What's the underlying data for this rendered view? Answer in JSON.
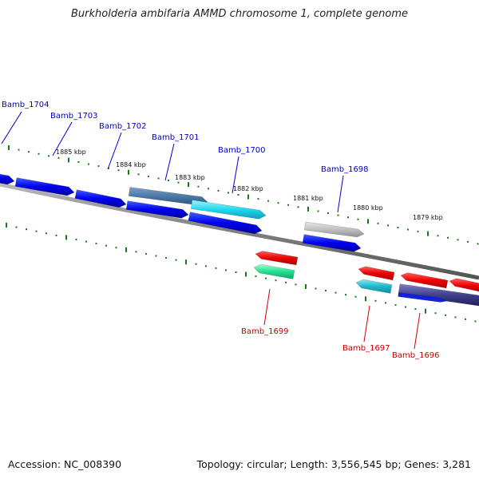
{
  "title": "Burkholderia ambifaria AMMD chromosome 1, complete genome",
  "footer": {
    "accession": "Accession: NC_008390",
    "summary": "Topology: circular; Length: 3,556,545 bp; Genes: 3,281"
  },
  "colors": {
    "forward_label": "#0000cc",
    "reverse_label": "#cc0000",
    "tick": "#1a7a1a",
    "backbone": "#808080"
  },
  "ticks": [
    {
      "label": "1885 kbp"
    },
    {
      "label": "1884 kbp"
    },
    {
      "label": "1883 kbp"
    },
    {
      "label": "1882 kbp"
    },
    {
      "label": "1881 kbp"
    },
    {
      "label": "1880 kbp"
    },
    {
      "label": "1879 kbp"
    }
  ],
  "genes_forward": [
    {
      "label": "Bamb_1704",
      "icon": "gene-arrow-icon"
    },
    {
      "label": "Bamb_1703",
      "icon": "gene-arrow-icon"
    },
    {
      "label": "Bamb_1702",
      "icon": "gene-arrow-icon"
    },
    {
      "label": "Bamb_1701",
      "icon": "gene-arrow-icon"
    },
    {
      "label": "Bamb_1700",
      "icon": "gene-arrow-icon"
    },
    {
      "label": "Bamb_1698",
      "icon": "gene-arrow-icon"
    }
  ],
  "genes_reverse": [
    {
      "label": "Bamb_1699",
      "icon": "gene-arrow-icon"
    },
    {
      "label": "Bamb_1697",
      "icon": "gene-arrow-icon"
    },
    {
      "label": "Bamb_1696",
      "icon": "gene-arrow-icon"
    }
  ]
}
